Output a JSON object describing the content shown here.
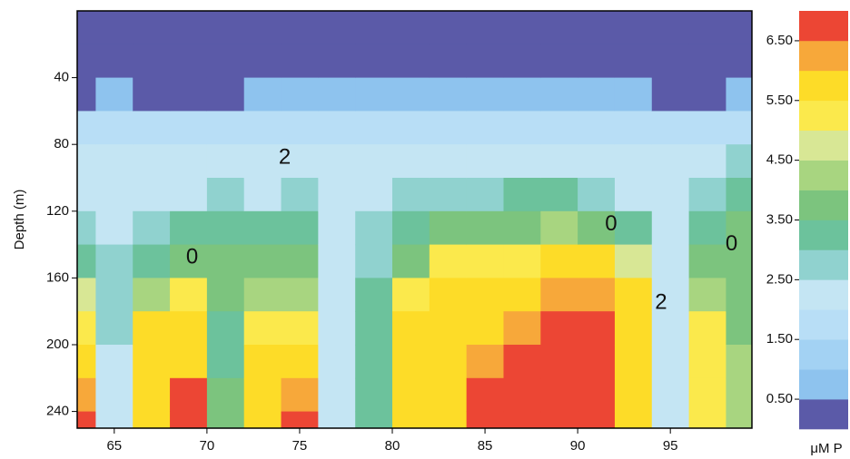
{
  "chart_data": {
    "type": "heatmap",
    "y_label": "Depth (m)",
    "x": [
      63,
      65,
      67,
      69,
      71,
      73,
      75,
      77,
      79,
      81,
      83,
      85,
      87,
      89,
      91,
      93,
      95,
      97,
      99
    ],
    "y": [
      10,
      30,
      50,
      70,
      90,
      110,
      130,
      150,
      170,
      190,
      210,
      230,
      250
    ],
    "z": [
      [
        0.3,
        0.3,
        0.4,
        1.5,
        2.0,
        2.0,
        2.5,
        3.0,
        4.5,
        5.0,
        5.5,
        6.0,
        6.5
      ],
      [
        0.3,
        0.3,
        0.5,
        1.5,
        2.0,
        2.0,
        2.0,
        2.5,
        2.5,
        2.5,
        2.0,
        2.0,
        2.0
      ],
      [
        0.3,
        0.3,
        0.4,
        1.5,
        2.0,
        2.0,
        2.5,
        3.0,
        4.0,
        5.5,
        5.5,
        5.5,
        5.5
      ],
      [
        0.3,
        0.3,
        0.4,
        1.5,
        2.0,
        2.0,
        3.0,
        3.5,
        5.0,
        5.5,
        5.5,
        6.5,
        6.5
      ],
      [
        0.3,
        0.3,
        0.4,
        1.5,
        2.0,
        2.5,
        3.0,
        3.5,
        3.5,
        3.0,
        3.0,
        3.5,
        3.5
      ],
      [
        0.3,
        0.3,
        0.5,
        1.5,
        2.0,
        2.0,
        3.0,
        3.5,
        4.0,
        5.0,
        5.5,
        5.5,
        5.5
      ],
      [
        0.3,
        0.4,
        0.5,
        1.5,
        2.0,
        2.5,
        3.0,
        3.5,
        4.0,
        5.0,
        5.5,
        6.0,
        6.5
      ],
      [
        0.3,
        0.3,
        0.5,
        1.5,
        2.0,
        2.0,
        2.0,
        2.0,
        2.0,
        2.0,
        2.0,
        2.0,
        2.0
      ],
      [
        0.3,
        0.4,
        0.5,
        1.5,
        2.0,
        2.0,
        2.5,
        2.5,
        3.0,
        3.0,
        3.0,
        3.0,
        3.0
      ],
      [
        0.3,
        0.3,
        0.5,
        1.5,
        2.0,
        2.5,
        3.0,
        3.5,
        5.0,
        5.5,
        5.5,
        5.5,
        5.5
      ],
      [
        0.3,
        0.4,
        0.5,
        1.5,
        2.0,
        2.5,
        3.5,
        5.0,
        5.5,
        5.5,
        5.5,
        5.5,
        5.5
      ],
      [
        0.3,
        0.4,
        0.5,
        1.5,
        2.0,
        2.5,
        3.5,
        5.0,
        5.5,
        5.5,
        6.0,
        6.5,
        6.5
      ],
      [
        0.3,
        0.4,
        0.5,
        1.5,
        2.0,
        3.0,
        3.5,
        5.0,
        5.5,
        6.0,
        6.5,
        6.5,
        6.5
      ],
      [
        0.3,
        0.3,
        0.5,
        1.5,
        2.0,
        3.0,
        4.0,
        5.5,
        6.0,
        6.5,
        6.5,
        6.5,
        6.5
      ],
      [
        0.3,
        0.4,
        0.5,
        1.5,
        2.0,
        2.5,
        3.5,
        5.5,
        6.0,
        6.5,
        6.5,
        6.5,
        6.5
      ],
      [
        0.3,
        0.3,
        0.5,
        1.5,
        2.0,
        2.0,
        3.0,
        4.5,
        5.5,
        5.5,
        5.5,
        5.5,
        5.5
      ],
      [
        0.3,
        0.3,
        0.4,
        1.5,
        2.0,
        2.0,
        2.0,
        2.0,
        2.0,
        2.0,
        2.0,
        2.0,
        2.0
      ],
      [
        0.3,
        0.3,
        0.4,
        1.5,
        2.0,
        2.5,
        3.0,
        3.5,
        4.0,
        5.0,
        5.0,
        5.0,
        5.0
      ],
      [
        0.3,
        0.3,
        0.5,
        1.5,
        2.5,
        3.0,
        3.5,
        3.5,
        3.5,
        3.5,
        4.0,
        4.0,
        4.0
      ]
    ],
    "xlim": [
      63,
      99.4
    ],
    "xticks": [
      65,
      70,
      75,
      80,
      85,
      90,
      95
    ],
    "ylim": [
      0,
      250
    ],
    "yticks": [
      40,
      80,
      120,
      160,
      200,
      240
    ],
    "annotations": [
      {
        "text": "2",
        "x": 74.2,
        "y": 88
      },
      {
        "text": "0",
        "x": 69.2,
        "y": 148
      },
      {
        "text": "0",
        "x": 91.8,
        "y": 128
      },
      {
        "text": "0",
        "x": 98.3,
        "y": 140
      },
      {
        "text": "2",
        "x": 94.5,
        "y": 175
      }
    ],
    "colorbar": {
      "label": "μM P",
      "levels": [
        0,
        0.5,
        1,
        1.5,
        2,
        2.5,
        3,
        3.5,
        4,
        4.5,
        5,
        5.5,
        6,
        6.5,
        7
      ],
      "colors": [
        "#5b5aa8",
        "#8ec3ee",
        "#a3d2f3",
        "#b8def6",
        "#c4e5f3",
        "#90d2cf",
        "#6cc29c",
        "#7cc47e",
        "#a8d580",
        "#d8e795",
        "#fbe94c",
        "#fddc28",
        "#f7a83a",
        "#ec4634"
      ],
      "ticks": [
        {
          "value": 0.5,
          "label": "0.50"
        },
        {
          "value": 1.5,
          "label": "1.50"
        },
        {
          "value": 2.5,
          "label": "2.50"
        },
        {
          "value": 3.5,
          "label": "3.50"
        },
        {
          "value": 4.5,
          "label": "4.50"
        },
        {
          "value": 5.5,
          "label": "5.50"
        },
        {
          "value": 6.5,
          "label": "6.50"
        }
      ]
    }
  }
}
